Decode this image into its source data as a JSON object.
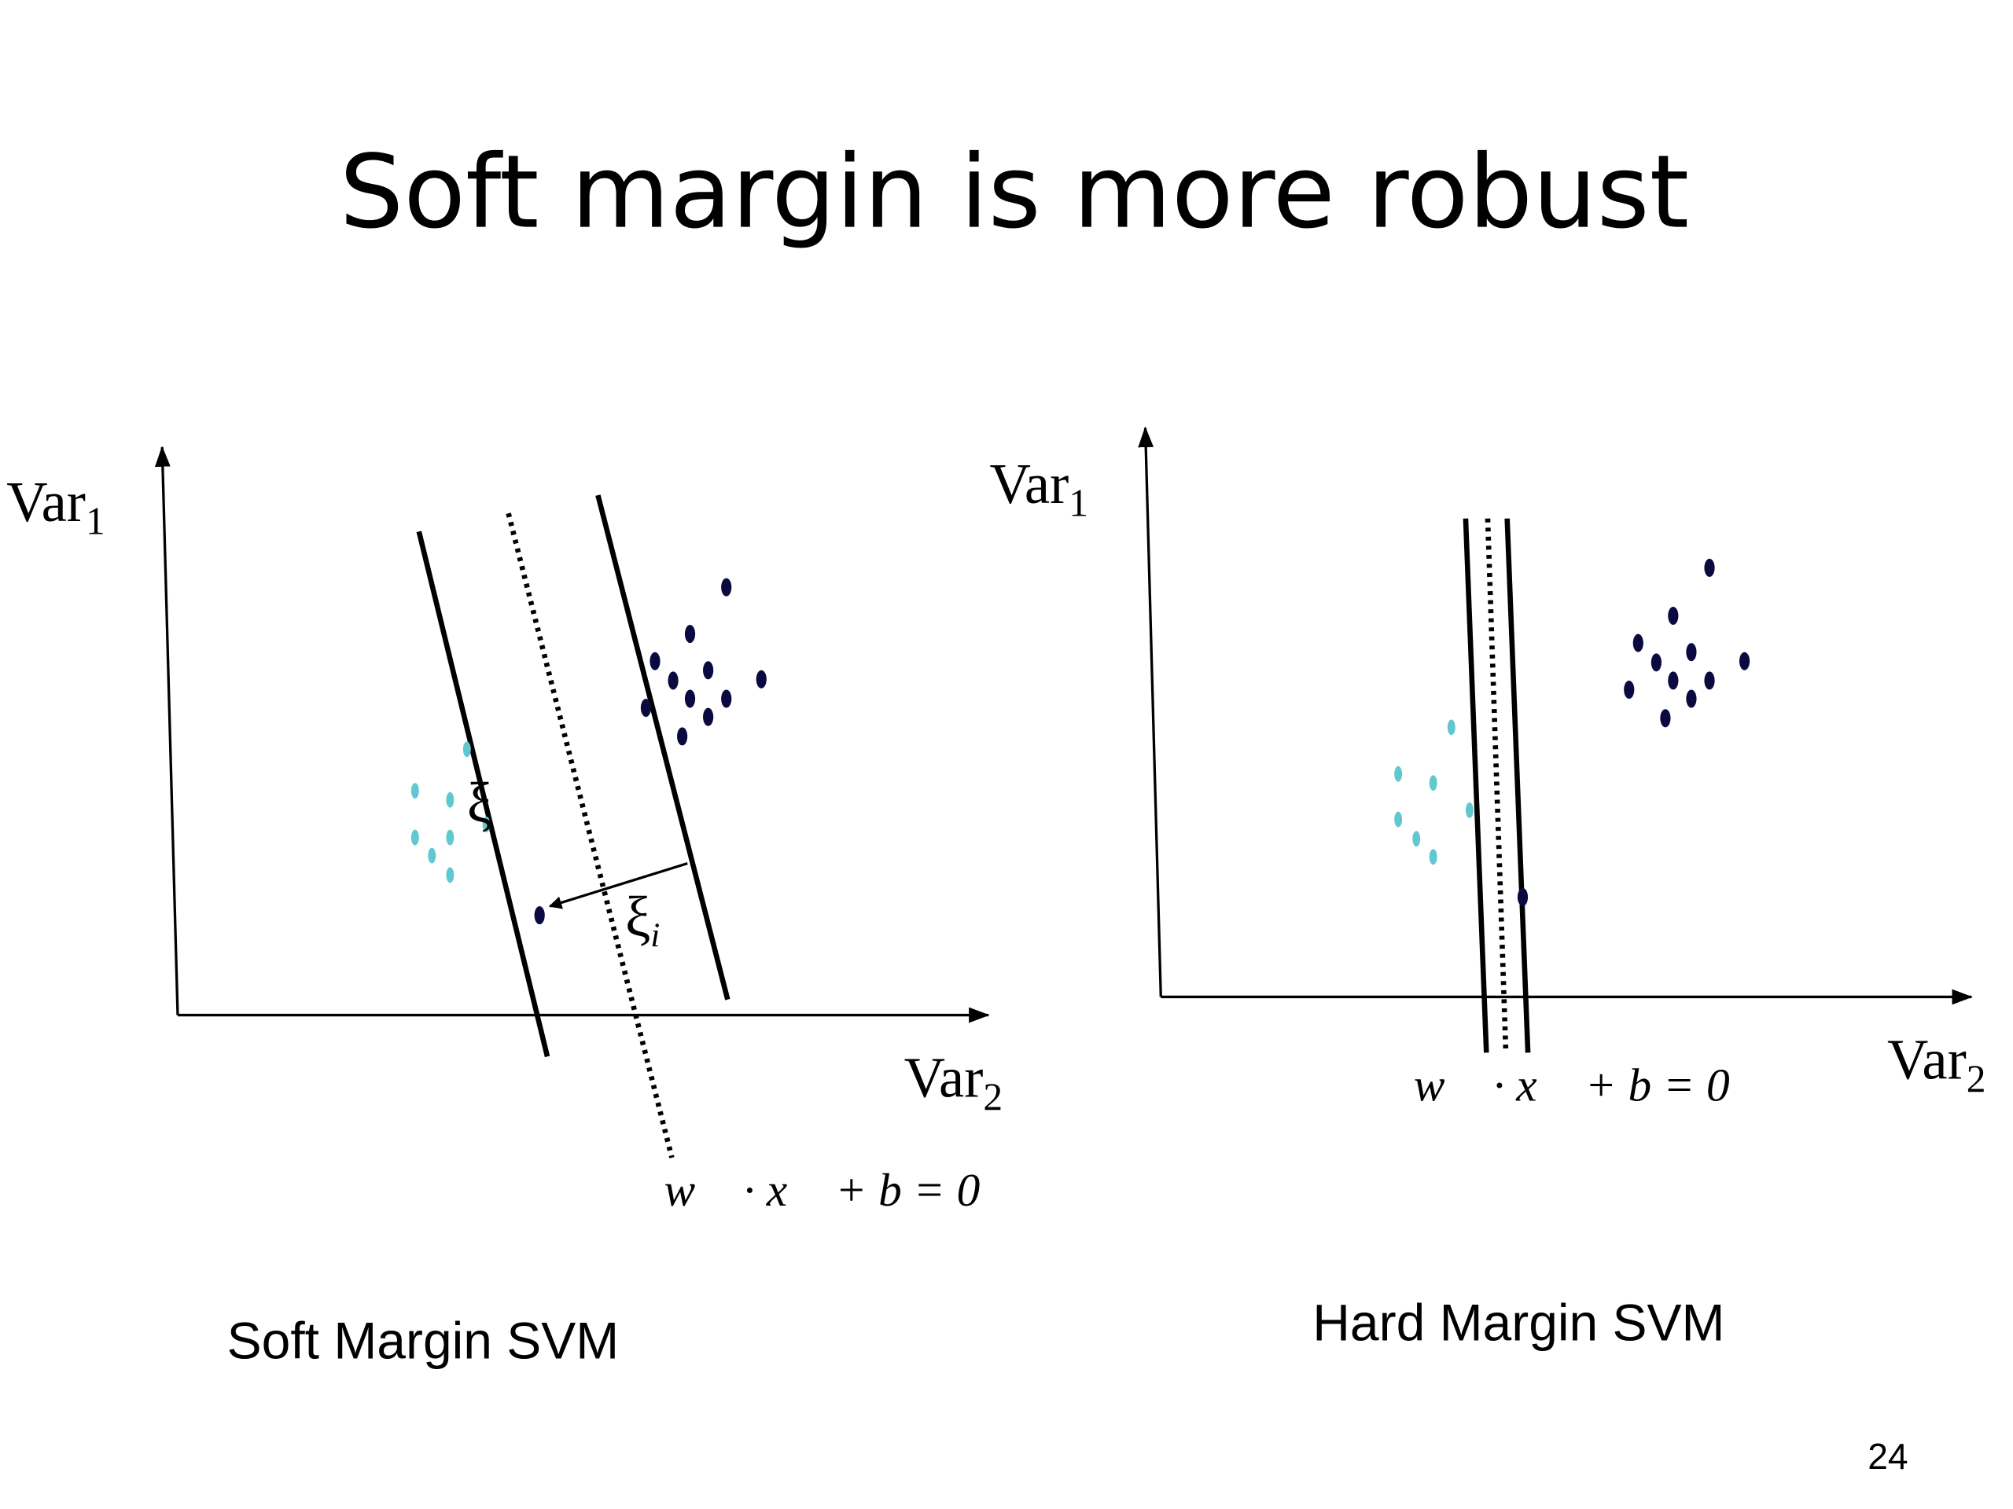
{
  "title": "Soft margin is more robust",
  "diagrams": [
    {
      "y_axis": {
        "label": "Var",
        "subscript": "1"
      },
      "x_axis": {
        "label": "Var",
        "subscript": "2"
      },
      "hyperplane_label": "w⃗ · x⃗ + b = 0",
      "slack_label": {
        "symbol": "ξ",
        "subscript": "i"
      },
      "small_slack_label": "ξ",
      "caption": "Soft Margin SVM"
    },
    {
      "y_axis": {
        "label": "Var",
        "subscript": "1"
      },
      "x_axis": {
        "label": "Var",
        "subscript": "2"
      },
      "hyperplane_label": "w⃗ · x⃗ + b = 0",
      "caption": "Hard Margin SVM"
    }
  ],
  "page_number": "24"
}
